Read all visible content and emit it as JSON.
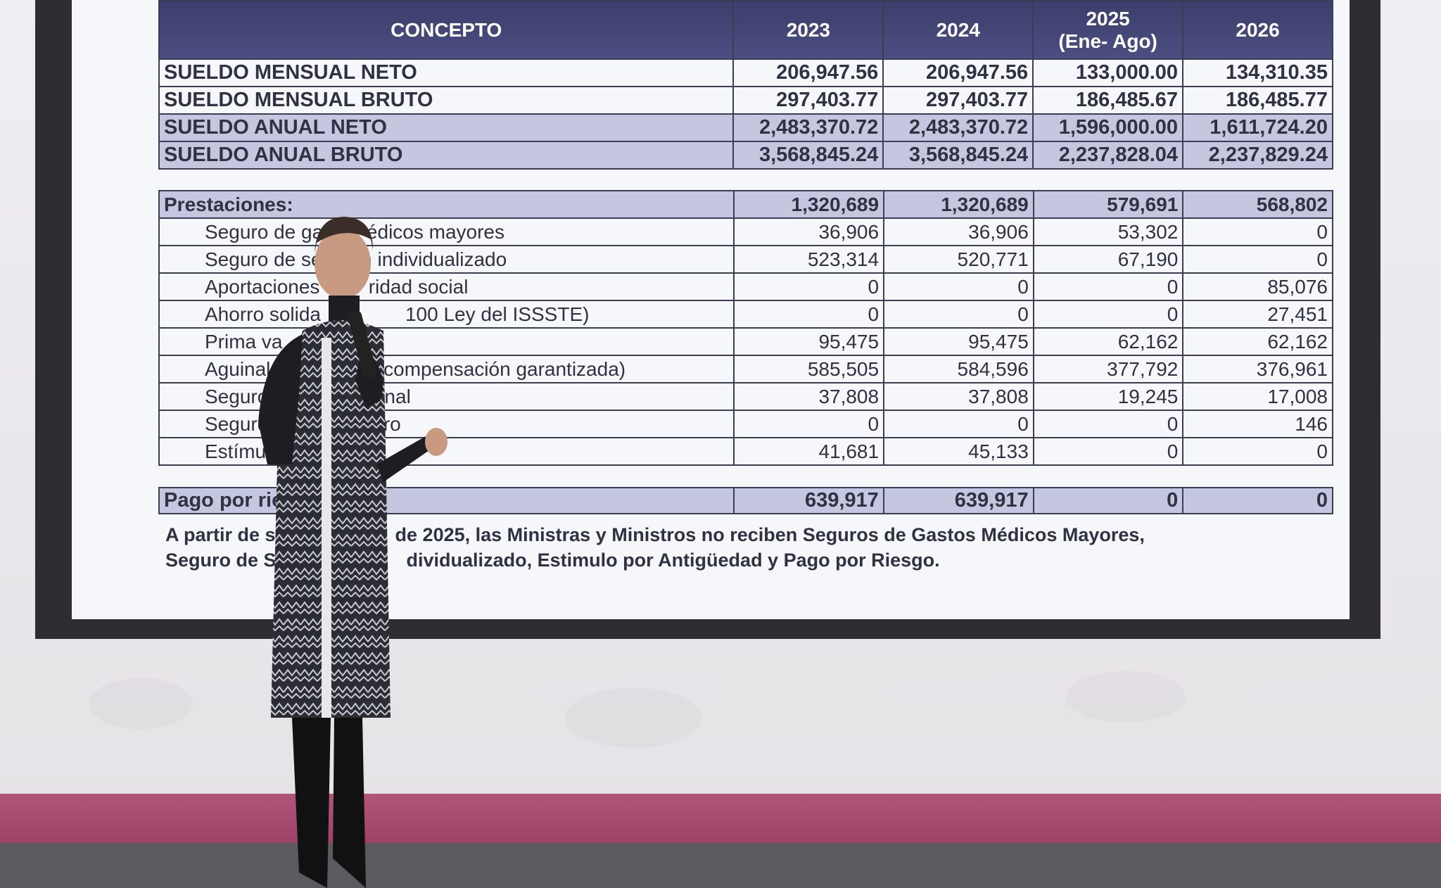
{
  "table_header": {
    "concepto": "CONCEPTO",
    "y2023": "2023",
    "y2024": "2024",
    "y2025": "2025",
    "y2025_sub": "(Ene- Ago)",
    "y2026": "2026"
  },
  "salary_rows": [
    {
      "label": "SUELDO MENSUAL NETO",
      "v": [
        "206,947.56",
        "206,947.56",
        "133,000.00",
        "134,310.35"
      ]
    },
    {
      "label": "SUELDO MENSUAL BRUTO",
      "v": [
        "297,403.77",
        "297,403.77",
        "186,485.67",
        "186,485.77"
      ]
    },
    {
      "label": "SUELDO ANUAL NETO",
      "v": [
        "2,483,370.72",
        "2,483,370.72",
        "1,596,000.00",
        "1,611,724.20"
      ]
    },
    {
      "label": "SUELDO ANUAL BRUTO",
      "v": [
        "3,568,845.24",
        "3,568,845.24",
        "2,237,828.04",
        "2,237,829.24"
      ]
    }
  ],
  "prestaciones": {
    "label": "Prestaciones:",
    "v": [
      "1,320,689",
      "1,320,689",
      "579,691",
      "568,802"
    ]
  },
  "benefit_rows": [
    {
      "label_a": "Seguro de gast",
      "label_b": "édicos mayores",
      "v": [
        "36,906",
        "36,906",
        "53,302",
        "0"
      ]
    },
    {
      "label_a": "Seguro de sep",
      "label_b": "n individualizado",
      "v": [
        "523,314",
        "520,771",
        "67,190",
        "0"
      ]
    },
    {
      "label_a": "Aportaciones a",
      "label_b": "ridad social",
      "v": [
        "0",
        "0",
        "0",
        "85,076"
      ]
    },
    {
      "label_a": "Ahorro solida",
      "label_b": "100 Ley del ISSSTE)",
      "v": [
        "0",
        "0",
        "0",
        "27,451"
      ]
    },
    {
      "label_a": "Prima va",
      "label_b": "",
      "v": [
        "95,475",
        "95,475",
        "62,162",
        "62,162"
      ]
    },
    {
      "label_a": "Aguinald",
      "label_b": "e y compensación garantizada)",
      "v": [
        "585,505",
        "584,596",
        "377,792",
        "376,961"
      ]
    },
    {
      "label_a": "Seguro d",
      "label_b": "ional",
      "v": [
        "37,808",
        "37,808",
        "19,245",
        "17,008"
      ]
    },
    {
      "label_a": "Seguro co",
      "label_b": "iro",
      "v": [
        "0",
        "0",
        "0",
        "146"
      ]
    },
    {
      "label_a": "Estímulo p",
      "label_b": "",
      "v": [
        "41,681",
        "45,133",
        "0",
        "0"
      ]
    }
  ],
  "pago": {
    "label": "Pago por ries",
    "v": [
      "639,917",
      "639,917",
      "0",
      "0"
    ]
  },
  "note": {
    "line1_a": "A partir de s",
    "line1_b": "de 2025, las Ministras y Ministros no reciben Seguros de Gastos Médicos Mayores,",
    "line2_a": "Seguro de Se",
    "line2_b": "dividualizado, Estimulo por Antigüedad y Pago por Riesgo."
  },
  "colors": {
    "header": "#3c3f6b",
    "shade": "#c4c7df",
    "band": "#a84b71"
  }
}
